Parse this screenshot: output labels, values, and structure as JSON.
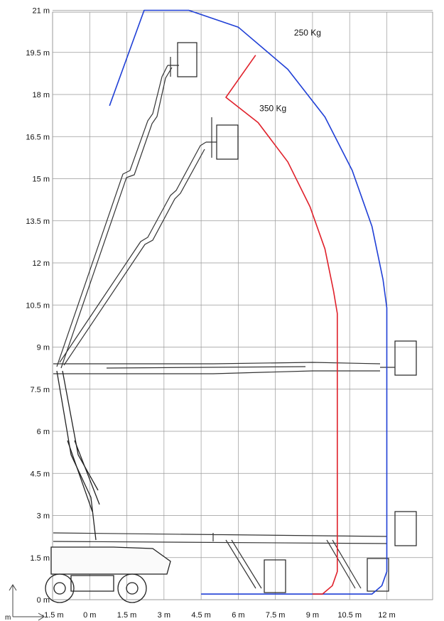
{
  "chart_data": {
    "type": "diagram",
    "x_unit_label": "m",
    "y_ticks": [
      "0 m",
      "1.5 m",
      "3 m",
      "4.5 m",
      "6 m",
      "7.5 m",
      "9 m",
      "10.5 m",
      "12 m",
      "13.5 m",
      "15 m",
      "16.5 m",
      "18 m",
      "19.5 m",
      "21 m"
    ],
    "x_ticks": [
      "-1.5 m",
      "0 m",
      "1.5 m",
      "3 m",
      "4.5 m",
      "6 m",
      "7.5 m",
      "9 m",
      "10.5 m",
      "12 m"
    ],
    "xlim": [
      -1.5,
      12
    ],
    "ylim": [
      0,
      21
    ],
    "grid": true,
    "series": [
      {
        "name": "250 Kg",
        "color": "#1f3fd6",
        "points": [
          [
            0.8,
            17.6
          ],
          [
            2.2,
            21
          ],
          [
            4.0,
            21
          ],
          [
            6.0,
            20.4
          ],
          [
            8.0,
            18.9
          ],
          [
            9.5,
            17.2
          ],
          [
            10.6,
            15.3
          ],
          [
            11.4,
            13.3
          ],
          [
            11.85,
            11.4
          ],
          [
            12.0,
            10.4
          ],
          [
            12.0,
            1.0
          ],
          [
            11.8,
            0.5
          ],
          [
            11.4,
            0.2
          ],
          [
            4.5,
            0.2
          ]
        ]
      },
      {
        "name": "350 Kg",
        "color": "#e0202a",
        "points": [
          [
            6.7,
            19.4
          ],
          [
            5.5,
            17.9
          ],
          [
            6.8,
            17.0
          ],
          [
            8.0,
            15.6
          ],
          [
            8.9,
            14.0
          ],
          [
            9.5,
            12.5
          ],
          [
            9.85,
            11.0
          ],
          [
            10.0,
            10.2
          ],
          [
            10.0,
            1.0
          ],
          [
            9.8,
            0.5
          ],
          [
            9.4,
            0.2
          ],
          [
            9.0,
            0.2
          ]
        ]
      }
    ]
  }
}
